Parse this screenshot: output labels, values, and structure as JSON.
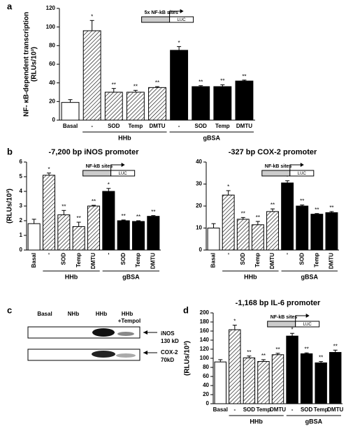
{
  "panel_letters": [
    "a",
    "b",
    "c",
    "d"
  ],
  "chart_data": [
    {
      "type": "bar",
      "ylabel": [
        "NF- κB-dependent transcription",
        "(RLUs/10³)"
      ],
      "inset": [
        "5x NF-kB sites",
        "LUC"
      ],
      "categories": [
        "Basal",
        "-",
        "SOD",
        "Temp",
        "DMTU",
        "-",
        "SOD",
        "Temp",
        "DMTU"
      ],
      "groups": [
        null,
        "HHb",
        "HHb",
        "HHb",
        "HHb",
        "gBSA",
        "gBSA",
        "gBSA",
        "gBSA"
      ],
      "pattern": [
        "open",
        "hatched",
        "hatched",
        "hatched",
        "hatched",
        "solid",
        "solid",
        "solid",
        "solid"
      ],
      "values": [
        19,
        96,
        30,
        30,
        35,
        75,
        36,
        36,
        42
      ],
      "errors": [
        3,
        11,
        4,
        2,
        1,
        4,
        1,
        2,
        1
      ],
      "annotations": [
        null,
        "*",
        "**",
        "**",
        "**",
        "*",
        "**",
        "**",
        "**"
      ],
      "ylim": [
        0,
        120
      ],
      "yticks": [
        0,
        20,
        40,
        60,
        80,
        100,
        120
      ],
      "rotate_labels": false
    },
    {
      "type": "bar",
      "title": "-7,200 bp iNOS promoter",
      "ylabel": [
        "(RLUs/10³)"
      ],
      "inset": [
        "NF-kB sites",
        "LUC"
      ],
      "categories": [
        "Basal",
        "-",
        "SOD",
        "Temp",
        "DMTU",
        "-",
        "SOD",
        "Temp",
        "DMTU"
      ],
      "groups": [
        null,
        "HHb",
        "HHb",
        "HHb",
        "HHb",
        "gBSA",
        "gBSA",
        "gBSA",
        "gBSA"
      ],
      "pattern": [
        "open",
        "hatched",
        "hatched",
        "hatched",
        "hatched",
        "solid",
        "solid",
        "solid",
        "solid"
      ],
      "values": [
        1.8,
        5.1,
        2.4,
        1.6,
        3.0,
        4.0,
        2.0,
        1.95,
        2.3
      ],
      "errors": [
        0.3,
        0.15,
        0.3,
        0.3,
        0.05,
        0.2,
        0.05,
        0.05,
        0.05
      ],
      "annotations": [
        null,
        "*",
        "**",
        "**",
        "**",
        "*",
        "**",
        "**",
        "**"
      ],
      "ylim": [
        0,
        6
      ],
      "yticks": [
        0,
        1,
        2,
        3,
        4,
        5,
        6
      ],
      "rotate_labels": true
    },
    {
      "type": "bar",
      "title": "-327 bp COX-2 promoter",
      "inset": [
        "NF-kB sites",
        "LUC"
      ],
      "categories": [
        "Basal",
        "-",
        "SOD",
        "Temp",
        "DMTU",
        "-",
        "SOD",
        "Temp",
        "DMTU"
      ],
      "groups": [
        null,
        "HHb",
        "HHb",
        "HHb",
        "HHb",
        "gBSA",
        "gBSA",
        "gBSA",
        "gBSA"
      ],
      "pattern": [
        "open",
        "hatched",
        "hatched",
        "hatched",
        "hatched",
        "solid",
        "solid",
        "solid",
        "solid"
      ],
      "values": [
        10,
        25,
        14,
        11.5,
        17.5,
        30.5,
        20,
        16.3,
        17
      ],
      "errors": [
        2,
        2,
        0.8,
        1.5,
        1.2,
        1,
        0.5,
        0.3,
        0.5
      ],
      "annotations": [
        null,
        "*",
        "**",
        "**",
        "**",
        "*",
        "**",
        "**",
        "**"
      ],
      "ylim": [
        0,
        40
      ],
      "yticks": [
        0,
        10,
        20,
        30,
        40
      ],
      "rotate_labels": true
    },
    {
      "type": "bar",
      "title": "-1,168 bp IL-6 promoter",
      "ylabel": [
        "(RLUs/10³)"
      ],
      "inset": [
        "NF-kB sites",
        "LUC"
      ],
      "categories": [
        "Basal",
        "-",
        "SOD",
        "Temp",
        "DMTU",
        "-",
        "SOD",
        "Temp",
        "DMTU"
      ],
      "groups": [
        null,
        "HHb",
        "HHb",
        "HHb",
        "HHb",
        "gBSA",
        "gBSA",
        "gBSA",
        "gBSA"
      ],
      "pattern": [
        "open",
        "hatched",
        "hatched",
        "hatched",
        "hatched",
        "solid",
        "solid",
        "solid",
        "solid"
      ],
      "values": [
        92,
        163,
        101,
        93,
        108,
        149,
        110,
        90,
        113
      ],
      "errors": [
        5,
        10,
        4,
        4,
        3,
        6,
        2,
        3,
        5
      ],
      "annotations": [
        null,
        "*",
        "**",
        "**",
        "**",
        "*",
        "**",
        "**",
        "**"
      ],
      "ylim": [
        0,
        200
      ],
      "yticks": [
        0,
        20,
        40,
        60,
        80,
        100,
        120,
        140,
        160,
        180,
        200
      ],
      "rotate_labels": false
    }
  ],
  "blot": {
    "lanes": [
      "Basal",
      "NHb",
      "HHb",
      "HHb",
      "+Tempol"
    ],
    "bands": [
      [
        "iNOS",
        "130 kD"
      ],
      [
        "COX-2",
        "70kD"
      ]
    ]
  }
}
